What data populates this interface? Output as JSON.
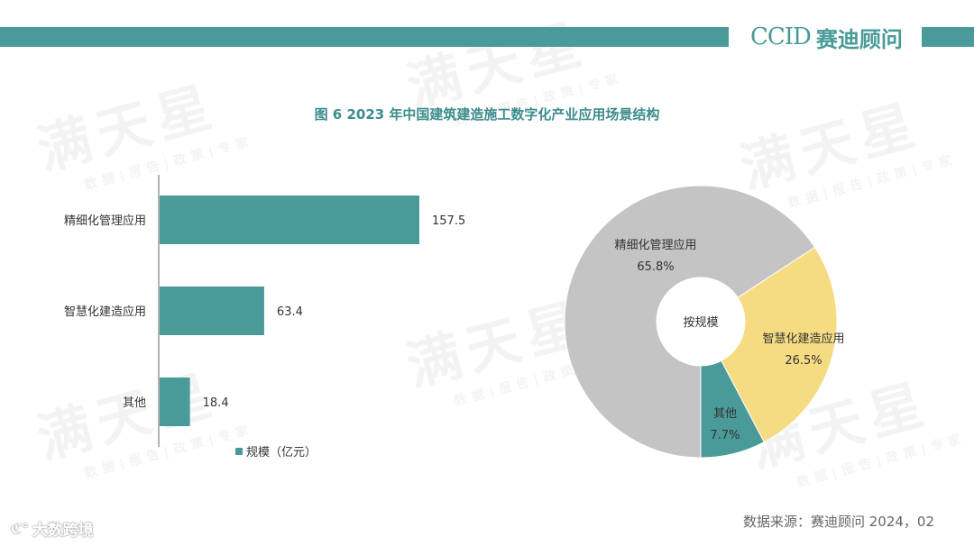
{
  "header": {
    "logo_mark": "CCID",
    "logo_text": "赛迪顾问"
  },
  "colors": {
    "teal": "#4a9a9a",
    "yellow": "#f5dc82",
    "gray": "#c4c4c4"
  },
  "watermark": {
    "big": "满天星",
    "small": "数据|报告|政策|专家"
  },
  "footer": {
    "source": "数据来源：赛迪顾问  2024，02",
    "brand": "大数跨境"
  },
  "chart_data": [
    {
      "type": "bar",
      "orientation": "horizontal",
      "title": "图 6  2023 年中国建筑建造施工数字化产业应用场景结构",
      "categories": [
        "精细化管理应用",
        "智慧化建造应用",
        "其他"
      ],
      "series": [
        {
          "name": "规模（亿元）",
          "values": [
            157.5,
            63.4,
            18.4
          ]
        }
      ],
      "value_labels": [
        "157.5",
        "63.4",
        "18.4"
      ],
      "xlim": [
        0,
        180
      ],
      "grid": false,
      "legend": "bottom"
    },
    {
      "type": "pie",
      "style": "donut",
      "center_label": "按规模",
      "slices": [
        {
          "label": "精细化管理应用",
          "value": 65.8,
          "pct_label": "65.8%"
        },
        {
          "label": "智慧化建造应用",
          "value": 26.5,
          "pct_label": "26.5%"
        },
        {
          "label": "其他",
          "value": 7.7,
          "pct_label": "7.7%"
        }
      ]
    }
  ]
}
